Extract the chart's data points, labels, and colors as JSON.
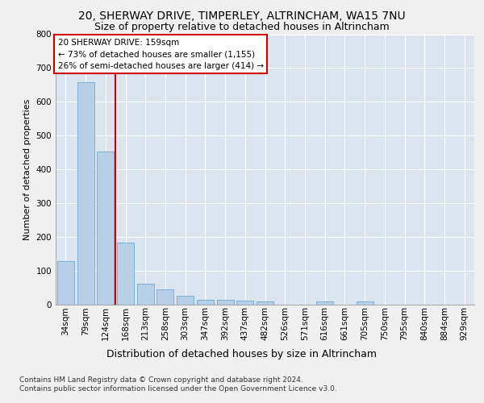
{
  "title1": "20, SHERWAY DRIVE, TIMPERLEY, ALTRINCHAM, WA15 7NU",
  "title2": "Size of property relative to detached houses in Altrincham",
  "xlabel": "Distribution of detached houses by size in Altrincham",
  "ylabel": "Number of detached properties",
  "categories": [
    "34sqm",
    "79sqm",
    "124sqm",
    "168sqm",
    "213sqm",
    "258sqm",
    "303sqm",
    "347sqm",
    "392sqm",
    "437sqm",
    "482sqm",
    "526sqm",
    "571sqm",
    "616sqm",
    "661sqm",
    "705sqm",
    "750sqm",
    "795sqm",
    "840sqm",
    "884sqm",
    "929sqm"
  ],
  "values": [
    128,
    658,
    452,
    183,
    60,
    43,
    25,
    12,
    13,
    11,
    9,
    0,
    0,
    8,
    0,
    8,
    0,
    0,
    0,
    0,
    0
  ],
  "bar_color": "#b8cfe8",
  "bar_edgecolor": "#7aafd4",
  "vline_x_index": 2.5,
  "vline_color": "#cc0000",
  "annotation_text": "20 SHERWAY DRIVE: 159sqm\n← 73% of detached houses are smaller (1,155)\n26% of semi-detached houses are larger (414) →",
  "annotation_box_color": "#ffffff",
  "annotation_box_edgecolor": "#cc0000",
  "ylim": [
    0,
    800
  ],
  "yticks": [
    0,
    100,
    200,
    300,
    400,
    500,
    600,
    700,
    800
  ],
  "fig_facecolor": "#f0f0f0",
  "plot_background": "#dce4f0",
  "grid_color": "#ffffff",
  "footer_text": "Contains HM Land Registry data © Crown copyright and database right 2024.\nContains public sector information licensed under the Open Government Licence v3.0.",
  "title1_fontsize": 10,
  "title2_fontsize": 9,
  "xlabel_fontsize": 9,
  "ylabel_fontsize": 8,
  "tick_fontsize": 7.5,
  "annotation_fontsize": 7.5,
  "footer_fontsize": 6.5
}
